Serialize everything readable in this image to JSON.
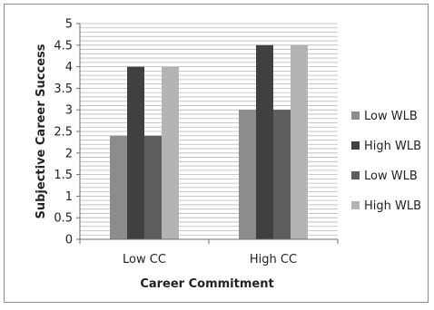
{
  "chart_data": {
    "type": "bar",
    "title": "",
    "xlabel": "Career Commitment",
    "ylabel": "Subjective Career Success",
    "categories": [
      "Low CC",
      "High CC"
    ],
    "ylim": [
      0,
      5
    ],
    "yticks": [
      "0",
      "0.5",
      "1",
      "1.5",
      "2",
      "2.5",
      "3",
      "3.5",
      "4",
      "4.5",
      "5"
    ],
    "grid": true,
    "legend_position": "right",
    "series": [
      {
        "name": "Low WLB",
        "values": [
          2.4,
          3.0
        ],
        "color": "#8c8c8c"
      },
      {
        "name": "High WLB",
        "values": [
          4.0,
          4.5
        ],
        "color": "#404040"
      },
      {
        "name": "Low WLB",
        "values": [
          2.4,
          3.0
        ],
        "color": "#5e5e5e"
      },
      {
        "name": "High WLB",
        "values": [
          4.0,
          4.5
        ],
        "color": "#b4b4b4"
      }
    ]
  }
}
